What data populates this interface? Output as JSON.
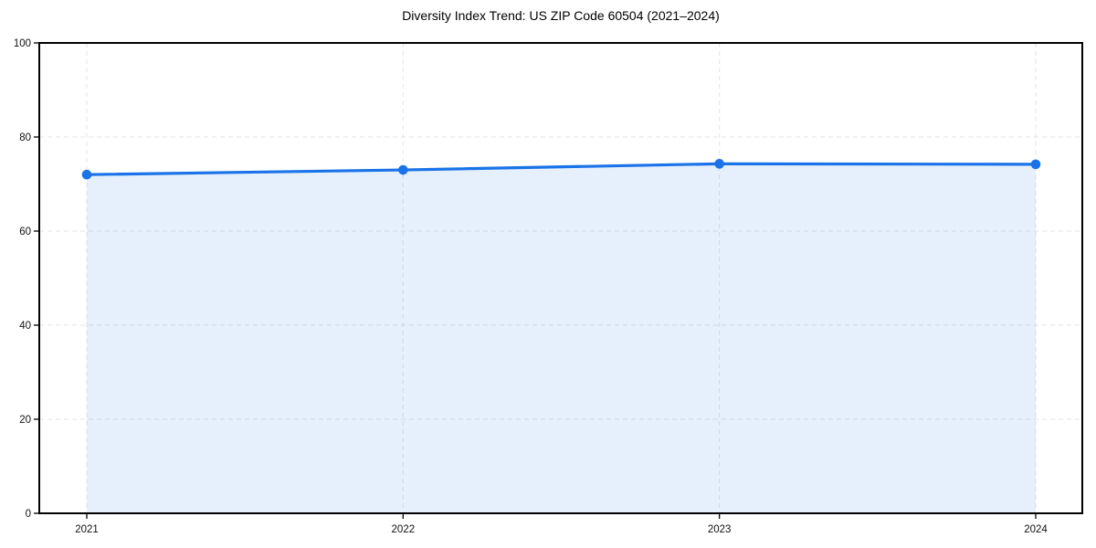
{
  "chart_data": {
    "type": "area",
    "title": "Diversity Index Trend: US ZIP Code 60504 (2021–2024)",
    "x": [
      2021,
      2022,
      2023,
      2024
    ],
    "x_tick_labels": [
      "2021",
      "2022",
      "2023",
      "2024"
    ],
    "series": [
      {
        "name": "Diversity Index",
        "values": [
          72.0,
          73.0,
          74.3,
          74.2
        ]
      }
    ],
    "xlabel": "",
    "ylabel": "",
    "ylim": [
      0,
      100
    ],
    "yticks": [
      0,
      20,
      40,
      60,
      80,
      100
    ],
    "grid": true,
    "grid_style": "dashed",
    "legend": false,
    "colors": {
      "line": "#1a73e8",
      "marker": "#1a73e8",
      "fill": "#1a73e8",
      "fill_opacity": 0.11,
      "grid": "#e3e3e3",
      "axis": "#000000",
      "tick_text": "#111111",
      "background": "#ffffff"
    }
  }
}
